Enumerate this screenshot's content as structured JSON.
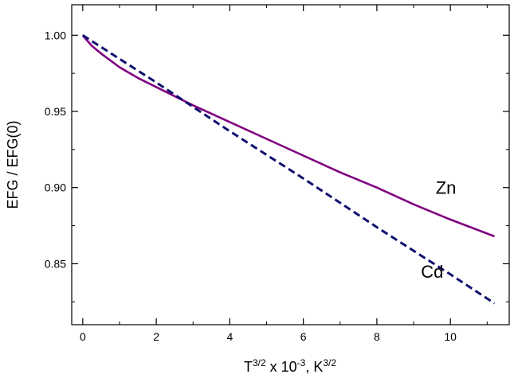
{
  "chart_data": {
    "type": "line",
    "title": "",
    "xlabel": {
      "base": "T",
      "base_sup": "3/2",
      "mid": " x 10",
      "mid_sup": "-3",
      "tail": ", K",
      "tail_sup": "3/2"
    },
    "ylabel": "EFG / EFG(0)",
    "xlim": [
      -0.3,
      11.6
    ],
    "ylim": [
      0.81,
      1.02
    ],
    "xticks": [
      0,
      2,
      4,
      6,
      8,
      10
    ],
    "yticks": [
      0.85,
      0.9,
      0.95,
      1.0
    ],
    "ytick_labels": [
      "0.85",
      "0.90",
      "0.95",
      "1.00"
    ],
    "grid": false,
    "legend": "none",
    "series": [
      {
        "name": "Zn",
        "color": "#800080",
        "dash": "solid",
        "x": [
          0,
          0.1,
          0.25,
          0.5,
          1,
          1.5,
          2,
          2.5,
          3,
          4,
          5,
          6,
          7,
          8,
          9,
          10,
          11.2
        ],
        "y": [
          1.0,
          0.997,
          0.993,
          0.988,
          0.979,
          0.972,
          0.966,
          0.96,
          0.954,
          0.943,
          0.932,
          0.921,
          0.91,
          0.9,
          0.889,
          0.879,
          0.868
        ]
      },
      {
        "name": "Cd",
        "color": "#101070",
        "dash": "dashed",
        "x": [
          0,
          2,
          4,
          6,
          8,
          10,
          11.2
        ],
        "y": [
          1.0,
          0.969,
          0.937,
          0.906,
          0.874,
          0.843,
          0.824
        ]
      }
    ],
    "annotations": [
      {
        "text": "Zn",
        "x": 9.6,
        "y": 0.9
      },
      {
        "text": "Cd",
        "x": 9.2,
        "y": 0.845
      }
    ]
  }
}
